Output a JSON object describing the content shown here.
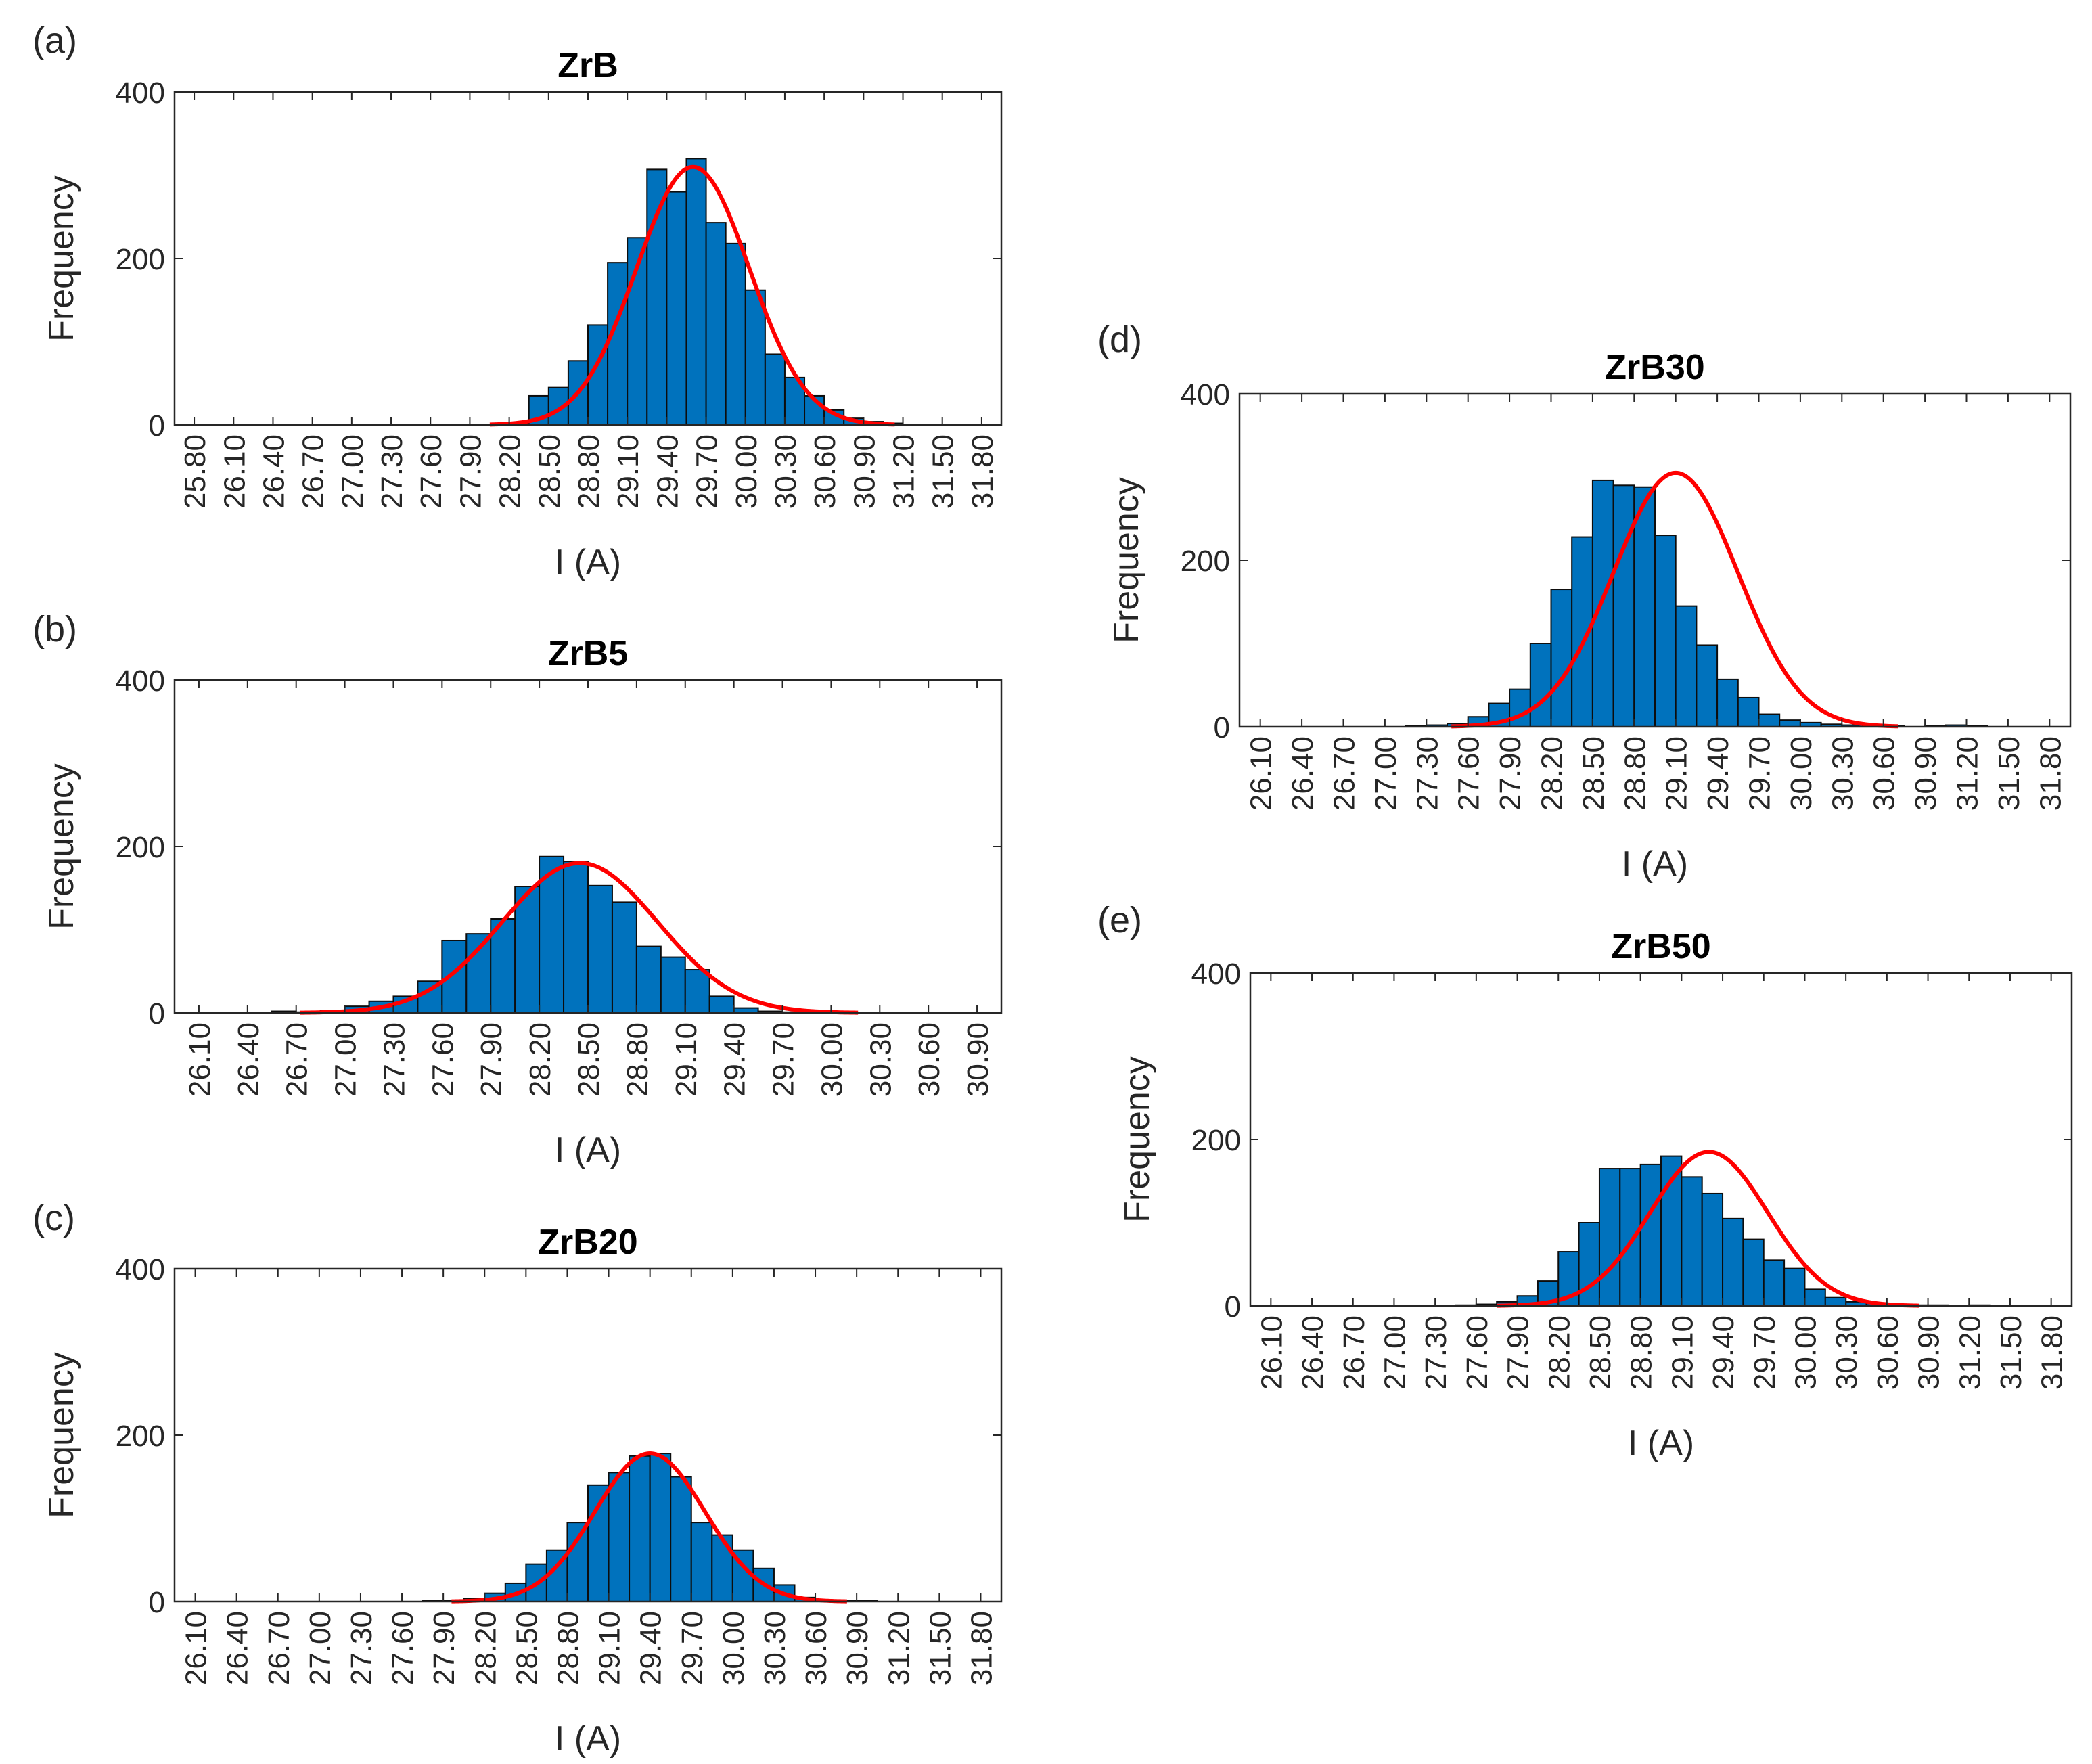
{
  "colors": {
    "bar": "#0072BD",
    "bar_edge": "#0d0d0d",
    "fit": "#FF0000",
    "axis": "#262626"
  },
  "chart_data": [
    {
      "id": "a",
      "panel_label": "(a)",
      "type": "bar",
      "title": "ZrB",
      "xlabel": "I (A)",
      "ylabel": "Frequency",
      "ylim": [
        0,
        400
      ],
      "yticks": [
        "0",
        "200",
        "400"
      ],
      "xlim": [
        25.65,
        31.95
      ],
      "x_tick_labels": [
        "25.80",
        "26.10",
        "26.40",
        "26.70",
        "27.00",
        "27.30",
        "27.60",
        "27.90",
        "28.20",
        "28.50",
        "28.80",
        "29.10",
        "29.40",
        "29.70",
        "30.00",
        "30.30",
        "30.60",
        "30.90",
        "31.20",
        "31.50",
        "31.80"
      ],
      "x_tick_values": [
        25.8,
        26.1,
        26.4,
        26.7,
        27.0,
        27.3,
        27.6,
        27.9,
        28.2,
        28.5,
        28.8,
        29.1,
        29.4,
        29.7,
        30.0,
        30.3,
        30.6,
        30.9,
        31.2,
        31.5,
        31.8
      ],
      "bin_width": 0.15,
      "bin_left_edges": [
        28.2,
        28.35,
        28.5,
        28.65,
        28.8,
        28.95,
        29.1,
        29.25,
        29.4,
        29.55,
        29.7,
        29.85,
        30.0,
        30.15,
        30.3,
        30.45,
        30.6,
        30.75,
        30.9,
        31.05
      ],
      "values": [
        2,
        35,
        45,
        77,
        120,
        195,
        225,
        307,
        280,
        320,
        243,
        218,
        162,
        85,
        57,
        35,
        18,
        8,
        4,
        2
      ],
      "fit": {
        "mean": 29.6,
        "sigma": 0.43,
        "peak": 310
      }
    },
    {
      "id": "b",
      "panel_label": "(b)",
      "type": "bar",
      "title": "ZrB5",
      "xlabel": "I (A)",
      "ylabel": "Frequency",
      "ylim": [
        0,
        400
      ],
      "yticks": [
        "0",
        "200",
        "400"
      ],
      "xlim": [
        25.95,
        31.05
      ],
      "x_tick_labels": [
        "26.10",
        "26.40",
        "26.70",
        "27.00",
        "27.30",
        "27.60",
        "27.90",
        "28.20",
        "28.50",
        "28.80",
        "29.10",
        "29.40",
        "29.70",
        "30.00",
        "30.30",
        "30.60",
        "30.90"
      ],
      "x_tick_values": [
        26.1,
        26.4,
        26.7,
        27.0,
        27.3,
        27.6,
        27.9,
        28.2,
        28.5,
        28.8,
        29.1,
        29.4,
        29.7,
        30.0,
        30.3,
        30.6,
        30.9
      ],
      "bin_width": 0.15,
      "bin_left_edges": [
        26.55,
        26.7,
        26.85,
        27.0,
        27.15,
        27.3,
        27.45,
        27.6,
        27.75,
        27.9,
        28.05,
        28.2,
        28.35,
        28.5,
        28.65,
        28.8,
        28.95,
        29.1,
        29.25,
        29.4,
        29.55,
        29.7,
        29.85
      ],
      "values": [
        2,
        1,
        3,
        8,
        14,
        20,
        38,
        87,
        95,
        113,
        152,
        188,
        182,
        153,
        133,
        80,
        67,
        52,
        20,
        6,
        2,
        1,
        1
      ],
      "fit": {
        "mean": 28.45,
        "sigma": 0.48,
        "peak": 180
      }
    },
    {
      "id": "c",
      "panel_label": "(c)",
      "type": "bar",
      "title": "ZrB20",
      "xlabel": "I (A)",
      "ylabel": "Frequency",
      "ylim": [
        0,
        400
      ],
      "yticks": [
        "0",
        "200",
        "400"
      ],
      "xlim": [
        25.95,
        31.95
      ],
      "x_tick_labels": [
        "26.10",
        "26.40",
        "26.70",
        "27.00",
        "27.30",
        "27.60",
        "27.90",
        "28.20",
        "28.50",
        "28.80",
        "29.10",
        "29.40",
        "29.70",
        "30.00",
        "30.30",
        "30.60",
        "30.90",
        "31.20",
        "31.50",
        "31.80"
      ],
      "x_tick_values": [
        26.1,
        26.4,
        26.7,
        27.0,
        27.3,
        27.6,
        27.9,
        28.2,
        28.5,
        28.8,
        29.1,
        29.4,
        29.7,
        30.0,
        30.3,
        30.6,
        30.9,
        31.2,
        31.5,
        31.8
      ],
      "bin_width": 0.15,
      "bin_left_edges": [
        27.75,
        27.9,
        28.05,
        28.2,
        28.35,
        28.5,
        28.65,
        28.8,
        28.95,
        29.1,
        29.25,
        29.4,
        29.55,
        29.7,
        29.85,
        30.0,
        30.15,
        30.3,
        30.45,
        30.6,
        30.75,
        30.9
      ],
      "values": [
        1,
        1,
        4,
        10,
        22,
        45,
        62,
        95,
        140,
        155,
        175,
        178,
        150,
        95,
        80,
        62,
        40,
        20,
        5,
        2,
        1,
        1
      ],
      "fit": {
        "mean": 29.4,
        "sigma": 0.4,
        "peak": 178
      }
    },
    {
      "id": "d",
      "panel_label": "(d)",
      "type": "bar",
      "title": "ZrB30",
      "xlabel": "I (A)",
      "ylabel": "Frequency",
      "ylim": [
        0,
        400
      ],
      "yticks": [
        "0",
        "200",
        "400"
      ],
      "xlim": [
        25.95,
        31.95
      ],
      "x_tick_labels": [
        "26.10",
        "26.40",
        "26.70",
        "27.00",
        "27.30",
        "27.60",
        "27.90",
        "28.20",
        "28.50",
        "28.80",
        "29.10",
        "29.40",
        "29.70",
        "30.00",
        "30.30",
        "30.60",
        "30.90",
        "31.20",
        "31.50",
        "31.80"
      ],
      "x_tick_values": [
        26.1,
        26.4,
        26.7,
        27.0,
        27.3,
        27.6,
        27.9,
        28.2,
        28.5,
        28.8,
        29.1,
        29.4,
        29.7,
        30.0,
        30.3,
        30.6,
        30.9,
        31.2,
        31.5,
        31.8
      ],
      "bin_width": 0.15,
      "bin_left_edges": [
        27.15,
        27.3,
        27.45,
        27.6,
        27.75,
        27.9,
        28.05,
        28.2,
        28.35,
        28.5,
        28.65,
        28.8,
        28.95,
        29.1,
        29.25,
        29.4,
        29.55,
        29.7,
        29.85,
        30.0,
        30.15,
        30.3,
        30.45,
        30.6,
        30.75,
        30.9,
        31.05,
        31.2
      ],
      "values": [
        1,
        2,
        4,
        12,
        28,
        45,
        100,
        165,
        228,
        296,
        290,
        288,
        230,
        145,
        98,
        57,
        35,
        15,
        8,
        5,
        3,
        2,
        1,
        1,
        0,
        1,
        2,
        1
      ],
      "fit": {
        "mean": 29.1,
        "sigma": 0.45,
        "peak": 305
      }
    },
    {
      "id": "e",
      "panel_label": "(e)",
      "type": "bar",
      "title": "ZrB50",
      "xlabel": "I (A)",
      "ylabel": "Frequency",
      "ylim": [
        0,
        400
      ],
      "yticks": [
        "0",
        "200",
        "400"
      ],
      "xlim": [
        25.95,
        31.95
      ],
      "x_tick_labels": [
        "26.10",
        "26.40",
        "26.70",
        "27.00",
        "27.30",
        "27.60",
        "27.90",
        "28.20",
        "28.50",
        "28.80",
        "29.10",
        "29.40",
        "29.70",
        "30.00",
        "30.30",
        "30.60",
        "30.90",
        "31.20",
        "31.50",
        "31.80"
      ],
      "x_tick_values": [
        26.1,
        26.4,
        26.7,
        27.0,
        27.3,
        27.6,
        27.9,
        28.2,
        28.5,
        28.8,
        29.1,
        29.4,
        29.7,
        30.0,
        30.3,
        30.6,
        30.9,
        31.2,
        31.5,
        31.8
      ],
      "bin_width": 0.15,
      "bin_left_edges": [
        27.45,
        27.6,
        27.75,
        27.9,
        28.05,
        28.2,
        28.35,
        28.5,
        28.65,
        28.8,
        28.95,
        29.1,
        29.25,
        29.4,
        29.55,
        29.7,
        29.85,
        30.0,
        30.15,
        30.3,
        30.45,
        30.6,
        30.75,
        30.9,
        31.05,
        31.2
      ],
      "values": [
        1,
        2,
        5,
        12,
        30,
        65,
        100,
        165,
        165,
        170,
        180,
        155,
        135,
        105,
        80,
        55,
        45,
        20,
        10,
        5,
        3,
        2,
        1,
        1,
        0,
        1
      ],
      "fit": {
        "mean": 29.3,
        "sigma": 0.43,
        "peak": 185
      }
    }
  ]
}
